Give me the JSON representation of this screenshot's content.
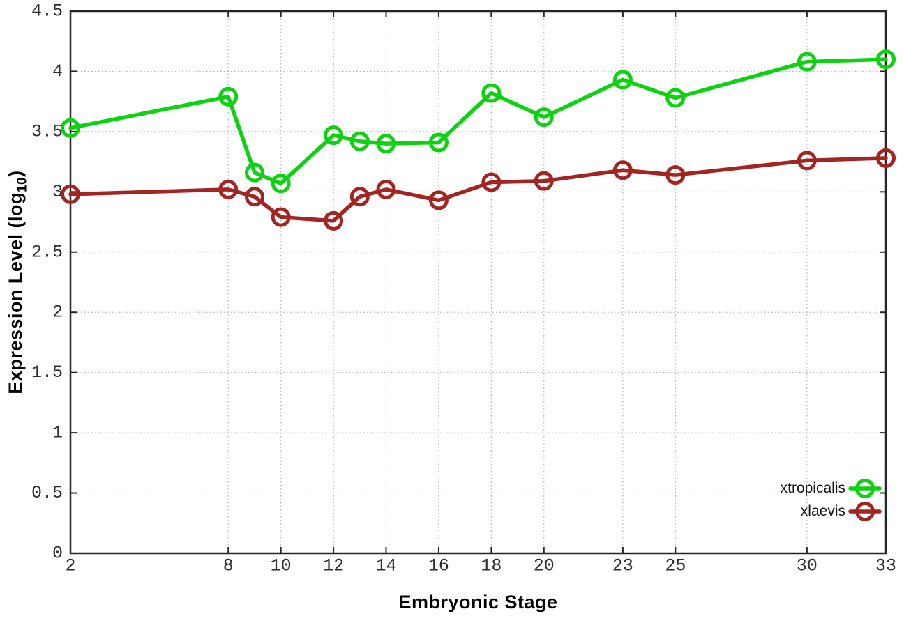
{
  "chart_data": {
    "type": "line",
    "title": "",
    "xlabel": "Embryonic Stage",
    "ylabel": "Expression Level (log10)",
    "ylabel_parts": {
      "prefix": "Expression Level (log",
      "sub": "10",
      "suffix": ")"
    },
    "xlim": [
      2,
      33
    ],
    "ylim": [
      0,
      4.5
    ],
    "grid": true,
    "legend_position": "bottom-right-inside",
    "x": [
      2,
      8,
      9,
      10,
      12,
      13,
      14,
      16,
      18,
      20,
      23,
      25,
      30,
      33
    ],
    "series": [
      {
        "name": "xtropicalis",
        "color": "#0bd30f",
        "values": [
          3.53,
          3.79,
          3.16,
          3.07,
          3.47,
          3.42,
          3.4,
          3.41,
          3.82,
          3.62,
          3.93,
          3.78,
          4.08,
          4.1
        ]
      },
      {
        "name": "xlaevis",
        "color": "#a32522",
        "values": [
          2.98,
          3.02,
          2.96,
          2.79,
          2.76,
          2.96,
          3.02,
          2.93,
          3.08,
          3.09,
          3.18,
          3.14,
          3.26,
          3.28
        ]
      }
    ],
    "x_ticks": {
      "values": [
        2,
        8,
        10,
        12,
        14,
        16,
        18,
        20,
        23,
        25,
        30,
        33
      ],
      "labels": [
        "2",
        "8",
        "10",
        "12",
        "14",
        "16",
        "18",
        "20",
        "23",
        "25",
        "30",
        "33"
      ]
    },
    "y_ticks": {
      "values": [
        0,
        0.5,
        1,
        1.5,
        2,
        2.5,
        3,
        3.5,
        4,
        4.5
      ],
      "labels": [
        "0",
        "0.5",
        "1",
        "1.5",
        "2",
        "2.5",
        "3",
        "3.5",
        "4",
        "4.5"
      ]
    }
  },
  "style": {
    "background": "#ffffff",
    "axis_color": "#262626",
    "grid_color": "#b5b5b5",
    "tick_label_color": "#2e2e2e",
    "title_color": "#000000",
    "legend_text_color": "#141414"
  }
}
